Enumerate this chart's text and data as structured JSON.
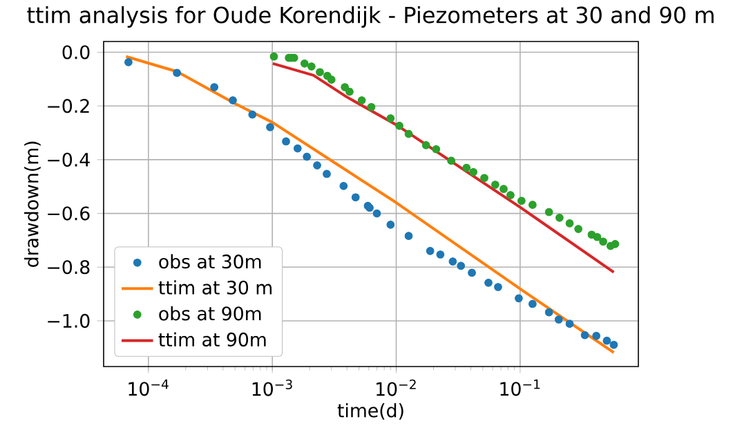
{
  "chart_data": {
    "type": "line",
    "title": "ttim analysis for Oude Korendijk - Piezometers at 30 and 90 m",
    "xlabel": "time(d)",
    "ylabel": "drawdown(m)",
    "log": "x",
    "grid": true,
    "legend": "bottom left",
    "xlim": [
      4.35e-05,
      0.9
    ],
    "ylim": [
      -1.17,
      0.04
    ],
    "xticks": [
      {
        "value": 0.0001,
        "label": "10$^{−4}$"
      },
      {
        "value": 0.001,
        "label": "10$^{−3}$"
      },
      {
        "value": 0.01,
        "label": "10$^{−2}$"
      },
      {
        "value": 0.1,
        "label": "10$^{−1}$"
      }
    ],
    "yticks": [
      {
        "value": -1.0,
        "label": "−1.0"
      },
      {
        "value": -0.8,
        "label": "−0.8"
      },
      {
        "value": -0.6,
        "label": "−0.6"
      },
      {
        "value": -0.4,
        "label": "−0.4"
      },
      {
        "value": -0.2,
        "label": "−0.2"
      },
      {
        "value": 0.0,
        "label": "0.0"
      }
    ],
    "series": [
      {
        "name": "obs at 30m",
        "type": "scatter",
        "marker": "circle",
        "color": "#1f77b4",
        "x": [
          6.9e-05,
          0.00017,
          0.00034,
          0.00048,
          0.00069,
          0.00096,
          0.00129,
          0.0016,
          0.0019,
          0.0023,
          0.00275,
          0.00376,
          0.0047,
          0.0059,
          0.0061,
          0.00698,
          0.009,
          0.0126,
          0.0188,
          0.0227,
          0.0286,
          0.0333,
          0.0408,
          0.0555,
          0.0664,
          0.0975,
          0.126,
          0.171,
          0.205,
          0.251,
          0.333,
          0.412,
          0.501,
          0.57
        ],
        "values": [
          -0.037,
          -0.077,
          -0.13,
          -0.179,
          -0.232,
          -0.279,
          -0.332,
          -0.358,
          -0.389,
          -0.421,
          -0.453,
          -0.498,
          -0.54,
          -0.572,
          -0.579,
          -0.6,
          -0.642,
          -0.684,
          -0.74,
          -0.753,
          -0.779,
          -0.795,
          -0.821,
          -0.858,
          -0.874,
          -0.916,
          -0.937,
          -0.968,
          -0.995,
          -1.011,
          -1.053,
          -1.056,
          -1.074,
          -1.089
        ]
      },
      {
        "name": "ttim at 30 m",
        "marker": "none",
        "line_style": "solid",
        "color": "#ff7f0e",
        "x": [
          6.6e-05,
          0.00017,
          0.0005,
          0.001,
          0.00394,
          0.01,
          0.1,
          0.57
        ],
        "values": [
          -0.016,
          -0.072,
          -0.191,
          -0.261,
          -0.439,
          -0.56,
          -0.881,
          -1.118
        ]
      },
      {
        "name": "obs at 90m",
        "type": "scatter",
        "marker": "circle",
        "color": "#2ca02c",
        "x": [
          0.00103,
          0.00136,
          0.00142,
          0.0015,
          0.00182,
          0.00207,
          0.00242,
          0.00278,
          0.003,
          0.00385,
          0.0042,
          0.00527,
          0.0063,
          0.009,
          0.0106,
          0.0126,
          0.0174,
          0.021,
          0.0278,
          0.0369,
          0.0419,
          0.0514,
          0.063,
          0.0736,
          0.0836,
          0.1026,
          0.126,
          0.171,
          0.208,
          0.251,
          0.295,
          0.378,
          0.419,
          0.468,
          0.537,
          0.585
        ],
        "values": [
          -0.016,
          -0.021,
          -0.021,
          -0.021,
          -0.042,
          -0.053,
          -0.074,
          -0.088,
          -0.102,
          -0.13,
          -0.147,
          -0.179,
          -0.204,
          -0.246,
          -0.274,
          -0.304,
          -0.346,
          -0.361,
          -0.404,
          -0.43,
          -0.446,
          -0.468,
          -0.493,
          -0.509,
          -0.532,
          -0.553,
          -0.568,
          -0.595,
          -0.616,
          -0.637,
          -0.658,
          -0.679,
          -0.688,
          -0.705,
          -0.721,
          -0.714
        ]
      },
      {
        "name": "ttim at 90m",
        "marker": "none",
        "line_style": "solid",
        "color": "#d62728",
        "x": [
          0.00101,
          0.00215,
          0.00394,
          0.01,
          0.1,
          0.57
        ],
        "values": [
          -0.042,
          -0.086,
          -0.165,
          -0.27,
          -0.577,
          -0.819
        ]
      }
    ]
  }
}
